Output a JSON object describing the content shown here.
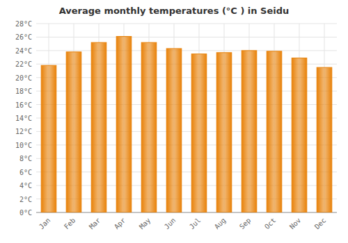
{
  "chart_data": {
    "type": "bar",
    "title": "Average monthly temperatures (°C ) in Seidu",
    "categories": [
      "Jan",
      "Feb",
      "Mar",
      "Apr",
      "May",
      "Jun",
      "Jul",
      "Aug",
      "Sep",
      "Oct",
      "Nov",
      "Dec"
    ],
    "values": [
      21.8,
      23.8,
      25.2,
      26.1,
      25.2,
      24.3,
      23.5,
      23.7,
      24.0,
      23.9,
      22.9,
      21.5
    ],
    "color": "#E8820A",
    "ylim": [
      0,
      28
    ],
    "yticks": [
      {
        "value": 0,
        "label": "0°C"
      },
      {
        "value": 2,
        "label": "2°C"
      },
      {
        "value": 4,
        "label": "4°C"
      },
      {
        "value": 6,
        "label": "6°C"
      },
      {
        "value": 8,
        "label": "8°C"
      },
      {
        "value": 10,
        "label": "10°C"
      },
      {
        "value": 12,
        "label": "12°C"
      },
      {
        "value": 14,
        "label": "14°C"
      },
      {
        "value": 16,
        "label": "16°C"
      },
      {
        "value": 18,
        "label": "18°C"
      },
      {
        "value": 20,
        "label": "20°C"
      },
      {
        "value": 22,
        "label": "22°C"
      },
      {
        "value": 24,
        "label": "24°C"
      },
      {
        "value": 26,
        "label": "26°C"
      },
      {
        "value": 28,
        "label": "28°C"
      }
    ],
    "grid": true
  }
}
